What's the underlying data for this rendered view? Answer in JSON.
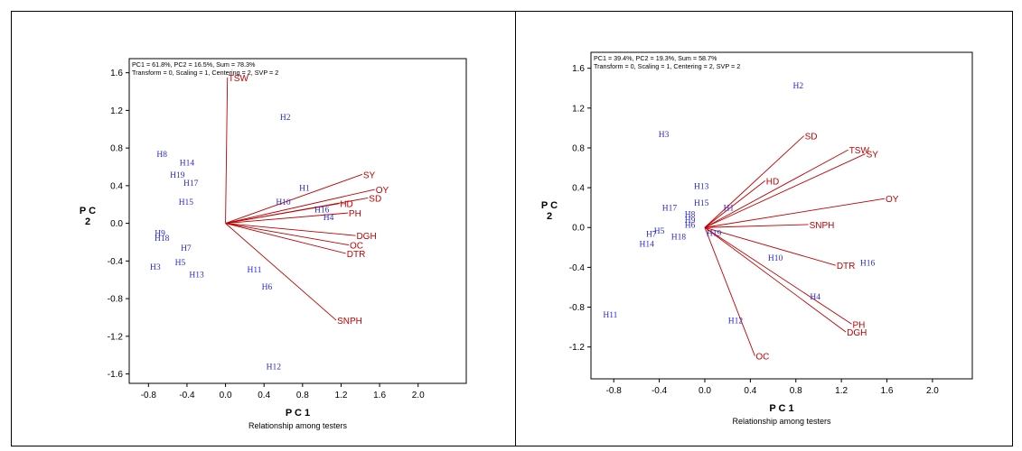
{
  "colors": {
    "vector": "#c00000",
    "genotype": "#2a2ad4",
    "axis": "#000000"
  },
  "chart_data": [
    {
      "type": "scatter",
      "subtype": "GGE biplot",
      "header_lines": [
        "PC1 = 61.8%, PC2 = 16.5%, Sum = 78.3%",
        "Transform = 0, Scaling = 1, Centering = 2, SVP = 2"
      ],
      "xlabel": "P C 1",
      "ylabel": "P C 2",
      "caption": "Relationship among testers",
      "xlim": [
        -1.0,
        2.5
      ],
      "ylim": [
        -1.7,
        1.75
      ],
      "xticks": [
        -0.8,
        -0.4,
        0.0,
        0.4,
        0.8,
        1.2,
        1.6,
        2.0
      ],
      "xtick_labels": [
        "-0.8",
        "-0.4",
        "0.0",
        "0.4",
        "0.8",
        "1.2",
        "1.6",
        "2.0"
      ],
      "yticks": [
        -1.6,
        -1.2,
        -0.8,
        -0.4,
        0.0,
        0.4,
        0.8,
        1.2,
        1.6
      ],
      "ytick_labels": [
        "-1.6",
        "-1.2",
        "-0.8",
        "-0.4",
        "0.0",
        "0.4",
        "0.8",
        "1.2",
        "1.6"
      ],
      "vectors": [
        {
          "label": "TSW",
          "x": 0.02,
          "y": 1.55
        },
        {
          "label": "SY",
          "x": 1.42,
          "y": 0.52
        },
        {
          "label": "OY",
          "x": 1.55,
          "y": 0.36
        },
        {
          "label": "SD",
          "x": 1.48,
          "y": 0.27
        },
        {
          "label": "HD",
          "x": 1.18,
          "y": 0.21
        },
        {
          "label": "PH",
          "x": 1.27,
          "y": 0.11
        },
        {
          "label": "DGH",
          "x": 1.35,
          "y": -0.13
        },
        {
          "label": "OC",
          "x": 1.28,
          "y": -0.23
        },
        {
          "label": "DTR",
          "x": 1.25,
          "y": -0.32
        },
        {
          "label": "SNPH",
          "x": 1.15,
          "y": -1.03
        }
      ],
      "points": [
        {
          "label": "H2",
          "x": 0.62,
          "y": 1.13
        },
        {
          "label": "H8",
          "x": -0.66,
          "y": 0.74
        },
        {
          "label": "H14",
          "x": -0.4,
          "y": 0.65
        },
        {
          "label": "H19",
          "x": -0.5,
          "y": 0.52
        },
        {
          "label": "H17",
          "x": -0.36,
          "y": 0.43
        },
        {
          "label": "H1",
          "x": 0.82,
          "y": 0.38
        },
        {
          "label": "H15",
          "x": -0.41,
          "y": 0.23
        },
        {
          "label": "H10",
          "x": 0.6,
          "y": 0.23
        },
        {
          "label": "H16",
          "x": 1.0,
          "y": 0.15
        },
        {
          "label": "H4",
          "x": 1.07,
          "y": 0.07
        },
        {
          "label": "H9",
          "x": -0.68,
          "y": -0.1
        },
        {
          "label": "H18",
          "x": -0.66,
          "y": -0.15
        },
        {
          "label": "H7",
          "x": -0.41,
          "y": -0.26
        },
        {
          "label": "H3",
          "x": -0.73,
          "y": -0.46
        },
        {
          "label": "H5",
          "x": -0.47,
          "y": -0.41
        },
        {
          "label": "H13",
          "x": -0.3,
          "y": -0.54
        },
        {
          "label": "H11",
          "x": 0.3,
          "y": -0.49
        },
        {
          "label": "H6",
          "x": 0.43,
          "y": -0.67
        },
        {
          "label": "H12",
          "x": 0.5,
          "y": -1.52
        }
      ]
    },
    {
      "type": "scatter",
      "subtype": "GGE biplot",
      "header_lines": [
        "PC1 = 39.4%, PC2 = 19.3%, Sum = 58.7%",
        "Transform = 0, Scaling = 1, Centering = 2, SVP = 2"
      ],
      "xlabel": "P C 1",
      "ylabel": "P C 2",
      "caption": "Relationship among testers",
      "xlim": [
        -1.0,
        2.35
      ],
      "ylim": [
        -1.52,
        1.76
      ],
      "xticks": [
        -0.8,
        -0.4,
        0.0,
        0.4,
        0.8,
        1.2,
        1.6,
        2.0
      ],
      "xtick_labels": [
        "-0.8",
        "-0.4",
        "0.0",
        "0.4",
        "0.8",
        "1.2",
        "1.6",
        "2.0"
      ],
      "yticks": [
        -1.2,
        -0.8,
        -0.4,
        0.0,
        0.4,
        0.8,
        1.2,
        1.6
      ],
      "ytick_labels": [
        "-1.2",
        "-0.8",
        "-0.4",
        "0.0",
        "0.4",
        "0.8",
        "1.2",
        "1.6"
      ],
      "vectors": [
        {
          "label": "SD",
          "x": 0.87,
          "y": 0.92
        },
        {
          "label": "TSW",
          "x": 1.26,
          "y": 0.78
        },
        {
          "label": "SY",
          "x": 1.41,
          "y": 0.74
        },
        {
          "label": "HD",
          "x": 0.53,
          "y": 0.47
        },
        {
          "label": "OY",
          "x": 1.58,
          "y": 0.29
        },
        {
          "label": "SNPH",
          "x": 0.91,
          "y": 0.03
        },
        {
          "label": "DTR",
          "x": 1.15,
          "y": -0.38
        },
        {
          "label": "PH",
          "x": 1.29,
          "y": -0.97
        },
        {
          "label": "DGH",
          "x": 1.24,
          "y": -1.05
        },
        {
          "label": "OC",
          "x": 0.44,
          "y": -1.29
        }
      ],
      "points": [
        {
          "label": "H2",
          "x": 0.82,
          "y": 1.43
        },
        {
          "label": "H3",
          "x": -0.36,
          "y": 0.94
        },
        {
          "label": "H13",
          "x": -0.03,
          "y": 0.42
        },
        {
          "label": "H15",
          "x": -0.03,
          "y": 0.25
        },
        {
          "label": "H17",
          "x": -0.31,
          "y": 0.2
        },
        {
          "label": "H1",
          "x": 0.21,
          "y": 0.2
        },
        {
          "label": "H8",
          "x": -0.13,
          "y": 0.14
        },
        {
          "label": "H9",
          "x": -0.13,
          "y": 0.08
        },
        {
          "label": "H6",
          "x": -0.13,
          "y": 0.03
        },
        {
          "label": "H19",
          "x": 0.08,
          "y": -0.05
        },
        {
          "label": "H5",
          "x": -0.4,
          "y": -0.03
        },
        {
          "label": "H7",
          "x": -0.47,
          "y": -0.06
        },
        {
          "label": "H18",
          "x": -0.23,
          "y": -0.09
        },
        {
          "label": "H14",
          "x": -0.51,
          "y": -0.16
        },
        {
          "label": "H10",
          "x": 0.62,
          "y": -0.3
        },
        {
          "label": "H16",
          "x": 1.43,
          "y": -0.35
        },
        {
          "label": "H4",
          "x": 0.97,
          "y": -0.69
        },
        {
          "label": "H11",
          "x": -0.83,
          "y": -0.87
        },
        {
          "label": "H12",
          "x": 0.27,
          "y": -0.93
        }
      ]
    }
  ]
}
